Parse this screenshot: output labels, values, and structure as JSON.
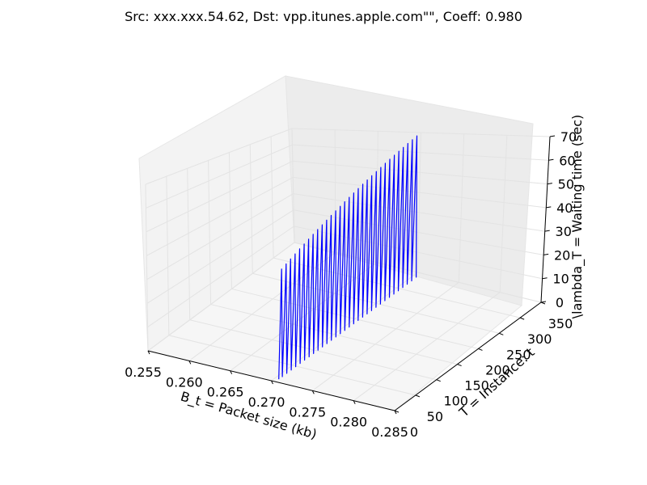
{
  "chart_data": {
    "type": "line",
    "projection": "3d",
    "title": "Src: xxx.xxx.54.62, Dst: vpp.itunes.apple.com\"\", Coeff: 0.980",
    "xlabel": "B_t = Packet size (kb)",
    "ylabel": "T = Instance: t",
    "zlabel": "\\lambda_T = Waiting time (sec)",
    "xlim": [
      0.255,
      0.285
    ],
    "ylim": [
      0,
      350
    ],
    "zlim": [
      0,
      70
    ],
    "x_ticks": [
      "0.255",
      "0.260",
      "0.265",
      "0.270",
      "0.275",
      "0.280",
      "0.285"
    ],
    "y_ticks": [
      "0",
      "50",
      "100",
      "150",
      "200",
      "250",
      "300",
      "350"
    ],
    "z_ticks": [
      "0",
      "10",
      "20",
      "30",
      "40",
      "50",
      "60",
      "70"
    ],
    "grid": true,
    "series": [
      {
        "color": "#0000ff",
        "x_constant": 0.2705,
        "spike_count": 31,
        "t_start": 10,
        "t_end": 330,
        "waiting_time_low": 0,
        "waiting_time_high_start": 40,
        "waiting_time_high_end": 70
      }
    ]
  }
}
